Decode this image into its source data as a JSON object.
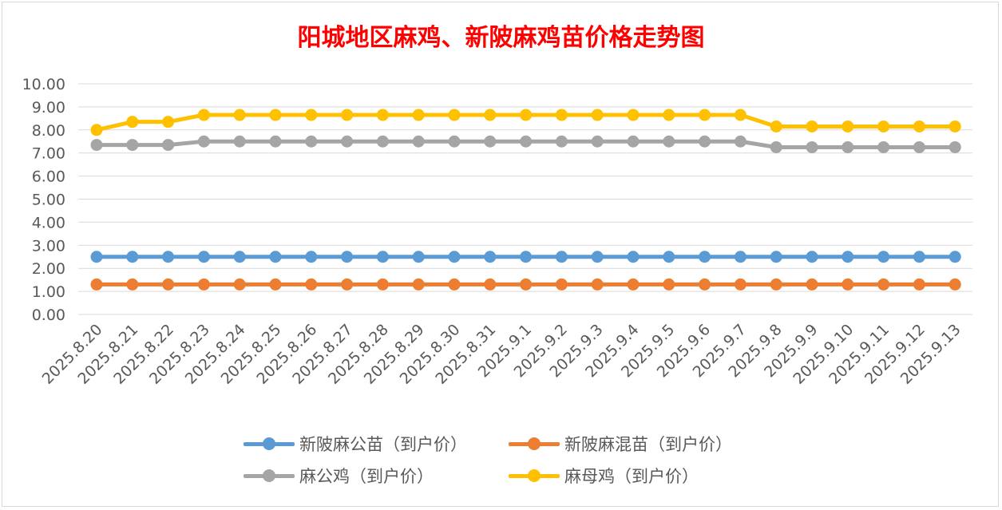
{
  "chart_data": {
    "type": "line",
    "title": "阳城地区麻鸡、新陂麻鸡苗价格走势图",
    "xlabel": "",
    "ylabel": "",
    "ylim": [
      0,
      10
    ],
    "yticks": [
      "0.00",
      "1.00",
      "2.00",
      "3.00",
      "4.00",
      "5.00",
      "6.00",
      "7.00",
      "8.00",
      "9.00",
      "10.00"
    ],
    "grid": true,
    "legend_position": "bottom",
    "categories": [
      "2025.8.20",
      "2025.8.21",
      "2025.8.22",
      "2025.8.23",
      "2025.8.24",
      "2025.8.25",
      "2025.8.26",
      "2025.8.27",
      "2025.8.28",
      "2025.8.29",
      "2025.8.30",
      "2025.8.31",
      "2025.9.1",
      "2025.9.2",
      "2025.9.3",
      "2025.9.4",
      "2025.9.5",
      "2025.9.6",
      "2025.9.7",
      "2025.9.8",
      "2025.9.9",
      "2025.9.10",
      "2025.9.11",
      "2025.9.12",
      "2025.9.13"
    ],
    "series": [
      {
        "name": "新陂麻公苗（到户价）",
        "color": "#5b9bd5",
        "values": [
          2.5,
          2.5,
          2.5,
          2.5,
          2.5,
          2.5,
          2.5,
          2.5,
          2.5,
          2.5,
          2.5,
          2.5,
          2.5,
          2.5,
          2.5,
          2.5,
          2.5,
          2.5,
          2.5,
          2.5,
          2.5,
          2.5,
          2.5,
          2.5,
          2.5
        ]
      },
      {
        "name": "新陂麻混苗（到户价）",
        "color": "#ed7d31",
        "values": [
          1.3,
          1.3,
          1.3,
          1.3,
          1.3,
          1.3,
          1.3,
          1.3,
          1.3,
          1.3,
          1.3,
          1.3,
          1.3,
          1.3,
          1.3,
          1.3,
          1.3,
          1.3,
          1.3,
          1.3,
          1.3,
          1.3,
          1.3,
          1.3,
          1.3
        ]
      },
      {
        "name": "麻公鸡（到户价）",
        "color": "#a5a5a5",
        "values": [
          7.35,
          7.35,
          7.35,
          7.5,
          7.5,
          7.5,
          7.5,
          7.5,
          7.5,
          7.5,
          7.5,
          7.5,
          7.5,
          7.5,
          7.5,
          7.5,
          7.5,
          7.5,
          7.5,
          7.25,
          7.25,
          7.25,
          7.25,
          7.25,
          7.25
        ]
      },
      {
        "name": "麻母鸡（到户价）",
        "color": "#ffc000",
        "values": [
          8.0,
          8.35,
          8.35,
          8.65,
          8.65,
          8.65,
          8.65,
          8.65,
          8.65,
          8.65,
          8.65,
          8.65,
          8.65,
          8.65,
          8.65,
          8.65,
          8.65,
          8.65,
          8.65,
          8.15,
          8.15,
          8.15,
          8.15,
          8.15,
          8.15
        ]
      }
    ]
  }
}
